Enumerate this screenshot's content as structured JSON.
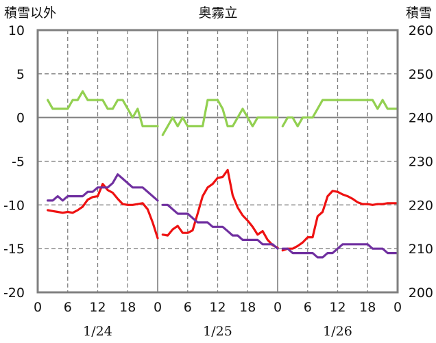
{
  "chart_data": {
    "type": "line",
    "title": "奥霧立",
    "left_axis_label": "積雪以外",
    "right_axis_label": "積雪",
    "left_ylim": [
      -20,
      10
    ],
    "left_ticks": [
      10,
      5,
      0,
      -5,
      -10,
      -15,
      -20
    ],
    "right_ylim": [
      200,
      260
    ],
    "right_ticks": [
      260,
      250,
      240,
      230,
      220,
      210,
      200
    ],
    "x_tick_labels": [
      "0",
      "6",
      "12",
      "18",
      "0",
      "6",
      "12",
      "18",
      "0",
      "6",
      "12",
      "18",
      "0"
    ],
    "date_labels": [
      "1/24",
      "1/25",
      "1/26"
    ],
    "grid": true,
    "colors": {
      "red": "#ee1111",
      "purple": "#7030a0",
      "green": "#92d050",
      "frame": "#7f7f7f",
      "grid": "#7f7f7f"
    },
    "series": [
      {
        "key": "green",
        "axis": "left",
        "segments": [
          {
            "x": [
              2,
              3,
              4,
              5,
              6,
              7,
              8,
              9,
              10,
              11,
              12,
              13,
              14,
              15,
              16,
              17,
              18,
              19,
              20,
              21,
              22,
              23,
              24
            ],
            "y": [
              2,
              1,
              1,
              1,
              1,
              2,
              2,
              3,
              2,
              2,
              2,
              2,
              1,
              1,
              2,
              2,
              1,
              0,
              1,
              -1,
              -1,
              -1,
              -1
            ]
          },
          {
            "x": [
              25,
              26,
              27,
              28,
              29,
              30,
              31,
              32,
              33,
              34,
              35,
              36,
              37,
              38,
              39,
              40,
              41,
              42,
              43,
              44,
              45,
              46,
              47,
              48
            ],
            "y": [
              -2,
              -1,
              0,
              -1,
              0,
              -1,
              -1,
              -1,
              -1,
              2,
              2,
              2,
              1,
              -1,
              -1,
              0,
              1,
              0,
              -1,
              0,
              0,
              0,
              0,
              0
            ]
          },
          {
            "x": [
              49,
              50,
              51,
              52,
              53,
              54,
              55,
              56,
              57,
              58,
              59,
              60,
              61,
              62,
              63,
              64,
              65,
              66,
              67,
              68,
              69,
              70,
              71,
              72
            ],
            "y": [
              -1,
              0,
              0,
              -1,
              0,
              0,
              0,
              1,
              2,
              2,
              2,
              2,
              2,
              2,
              2,
              2,
              2,
              2,
              2,
              1,
              2,
              1,
              1,
              1
            ]
          }
        ]
      },
      {
        "key": "red",
        "axis": "left",
        "segments": [
          {
            "x": [
              2,
              3,
              4,
              5,
              6,
              7,
              8,
              9,
              10,
              11,
              12,
              13,
              14,
              15,
              16,
              17,
              18,
              19,
              20,
              21,
              22,
              23,
              24
            ],
            "y": [
              -10.6,
              -10.7,
              -10.8,
              -10.9,
              -10.8,
              -10.9,
              -10.6,
              -10.2,
              -9.4,
              -9.1,
              -9.0,
              -7.6,
              -8.3,
              -8.6,
              -9.3,
              -9.9,
              -10.0,
              -10.0,
              -9.9,
              -9.8,
              -10.5,
              -12.0,
              -13.8
            ]
          },
          {
            "x": [
              25,
              26,
              27,
              28,
              29,
              30,
              31,
              32,
              33,
              34,
              35,
              36,
              37,
              38,
              39,
              40,
              41,
              42,
              43,
              44,
              45,
              46,
              47,
              48
            ],
            "y": [
              -13.4,
              -13.5,
              -12.8,
              -12.4,
              -13.2,
              -13.2,
              -12.9,
              -11.0,
              -9.0,
              -8.0,
              -7.6,
              -6.9,
              -6.8,
              -6.0,
              -8.9,
              -10.3,
              -11.2,
              -11.8,
              -12.5,
              -13.4,
              -13.0,
              -14.0,
              -14.6,
              -14.9
            ]
          },
          {
            "x": [
              49,
              50,
              51,
              52,
              53,
              54,
              55,
              56,
              57,
              58,
              59,
              60,
              61,
              62,
              63,
              64,
              65,
              66,
              67,
              68,
              69,
              70,
              71,
              72
            ],
            "y": [
              -15.2,
              -15.0,
              -15.0,
              -14.7,
              -14.3,
              -13.7,
              -13.7,
              -11.3,
              -10.8,
              -9.0,
              -8.4,
              -8.5,
              -8.8,
              -9.0,
              -9.3,
              -9.7,
              -9.9,
              -9.9,
              -10.0,
              -9.9,
              -9.9,
              -9.8,
              -9.8,
              -9.8
            ]
          }
        ]
      },
      {
        "key": "purple",
        "axis": "left",
        "segments": [
          {
            "x": [
              2,
              3,
              4,
              5,
              6,
              7,
              8,
              9,
              10,
              11,
              12,
              13,
              14,
              15,
              16,
              17,
              18,
              19,
              20,
              21,
              22,
              23,
              24
            ],
            "y": [
              -9.5,
              -9.5,
              -9,
              -9.5,
              -9,
              -9,
              -9,
              -9,
              -8.5,
              -8.5,
              -8,
              -8,
              -8,
              -7.5,
              -6.5,
              -7,
              -7.5,
              -8,
              -8,
              -8,
              -8.5,
              -9,
              -9.5
            ]
          },
          {
            "x": [
              25,
              26,
              27,
              28,
              29,
              30,
              31,
              32,
              33,
              34,
              35,
              36,
              37,
              38,
              39,
              40,
              41,
              42,
              43,
              44,
              45,
              46,
              47,
              48
            ],
            "y": [
              -10,
              -10,
              -10.5,
              -11,
              -11,
              -11,
              -11.5,
              -12,
              -12,
              -12,
              -12.5,
              -12.5,
              -12.5,
              -13,
              -13.5,
              -13.5,
              -14,
              -14,
              -14,
              -14,
              -14.5,
              -14.5,
              -14.5,
              -15
            ]
          },
          {
            "x": [
              49,
              50,
              51,
              52,
              53,
              54,
              55,
              56,
              57,
              58,
              59,
              60,
              61,
              62,
              63,
              64,
              65,
              66,
              67,
              68,
              69,
              70,
              71,
              72
            ],
            "y": [
              -15,
              -15,
              -15.5,
              -15.5,
              -15.5,
              -15.5,
              -15.5,
              -16,
              -16,
              -15.5,
              -15.5,
              -15,
              -14.5,
              -14.5,
              -14.5,
              -14.5,
              -14.5,
              -14.5,
              -15,
              -15,
              -15,
              -15.5,
              -15.5,
              -15.5
            ]
          }
        ]
      }
    ]
  }
}
